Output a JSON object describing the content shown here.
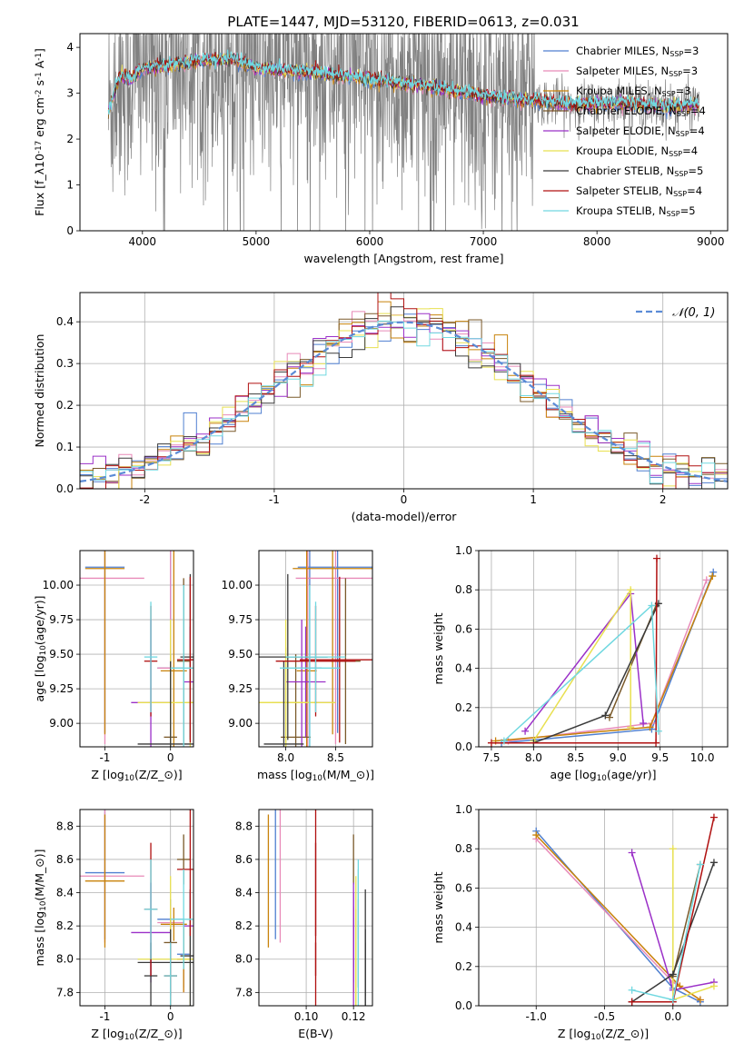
{
  "figure": {
    "title": "PLATE=1447, MJD=53120, FIBERID=0613, z=0.031"
  },
  "models": [
    {
      "label": "Chabrier MILES, N$_{SSP}$=3",
      "lib": "Chabrier MILES",
      "nssp": "3",
      "color": "#4f7fd0"
    },
    {
      "label": "Salpeter MILES, N$_{SSP}$=3",
      "lib": "Salpeter MILES",
      "nssp": "3",
      "color": "#e88ab8"
    },
    {
      "label": "Kroupa MILES, N$_{SSP}$=3",
      "lib": "Kroupa MILES",
      "nssp": "3",
      "color": "#c8820a"
    },
    {
      "label": "Chabrier ELODIE, N$_{SSP}$=4",
      "lib": "Chabrier ELODIE",
      "nssp": "4",
      "color": "#7a5a2a"
    },
    {
      "label": "Salpeter ELODIE, N$_{SSP}$=4",
      "lib": "Salpeter ELODIE",
      "nssp": "4",
      "color": "#9b30c8"
    },
    {
      "label": "Kroupa ELODIE, N$_{SSP}$=4",
      "lib": "Kroupa ELODIE",
      "nssp": "4",
      "color": "#e8e050"
    },
    {
      "label": "Chabrier STELIB, N$_{SSP}$=5",
      "lib": "Chabrier STELIB",
      "nssp": "5",
      "color": "#3a3a3a"
    },
    {
      "label": "Salpeter STELIB, N$_{SSP}$=4",
      "lib": "Salpeter STELIB",
      "nssp": "4",
      "color": "#b01010"
    },
    {
      "label": "Kroupa STELIB, N$_{SSP}$=5",
      "lib": "Kroupa STELIB",
      "nssp": "5",
      "color": "#70d8e0"
    }
  ],
  "chart_data": [
    {
      "id": "spectrum",
      "type": "line",
      "xlabel": "wavelength [Angstrom, rest frame]",
      "ylabel": "Flux [f$_\\lambda$10$^{-17}$ erg cm$^{-2}$ s$^{-1}$ A$^{-1}$]",
      "xlim": [
        3450,
        9150
      ],
      "ylim": [
        0,
        4.3
      ],
      "xticks": [
        4000,
        5000,
        6000,
        7000,
        8000,
        9000
      ],
      "yticks": [
        0,
        1,
        2,
        3,
        4
      ],
      "data_color": "#808080",
      "data_range": [
        3700,
        8900
      ],
      "model_range": [
        3700,
        7450
      ],
      "model_tail_range": [
        7450,
        8900
      ],
      "continuum": {
        "x": [
          3700,
          3800,
          3900,
          4000,
          4200,
          4500,
          4800,
          5000,
          5500,
          6000,
          6500,
          7000,
          7400,
          7800,
          8200,
          8600,
          8900
        ],
        "y": [
          2.6,
          3.4,
          3.3,
          3.55,
          3.6,
          3.7,
          3.75,
          3.55,
          3.45,
          3.3,
          3.15,
          2.95,
          2.85,
          2.75,
          2.8,
          2.7,
          2.75
        ]
      }
    },
    {
      "id": "residuals",
      "type": "line",
      "xlabel": "(data-model)/error",
      "ylabel": "Normed distribution",
      "xlim": [
        -2.5,
        2.5
      ],
      "ylim": [
        0,
        0.47
      ],
      "xticks": [
        -2,
        -1,
        0,
        1,
        2
      ],
      "yticks": [
        0.0,
        0.1,
        0.2,
        0.3,
        0.4
      ],
      "grid": true,
      "reference": {
        "label": "$\\mathcal{N}(0,1)$",
        "mean": 0,
        "sigma": 1,
        "color": "#5b8bd6"
      },
      "legend": "top-right"
    },
    {
      "id": "age_vs_Z",
      "type": "scatter",
      "xlabel": "Z [log$_{10}$(Z/Z$_\\odot$)]",
      "ylabel": "age  [log$_{10}$(age/yr)]",
      "xlim": [
        -1.38,
        0.35
      ],
      "ylim": [
        8.83,
        10.25
      ],
      "xticks": [
        -1,
        0
      ],
      "yticks": [
        9.0,
        9.25,
        9.5,
        9.75,
        10.0
      ],
      "grid": true
    },
    {
      "id": "age_vs_mass",
      "type": "scatter",
      "xlabel": "mass [log$_{10}$(M/M$_\\odot$)]",
      "xlim": [
        7.73,
        8.87
      ],
      "ylim": [
        8.83,
        10.25
      ],
      "xticks": [
        8.0,
        8.5
      ],
      "yticks": [
        9.0,
        9.25,
        9.5,
        9.75,
        10.0
      ],
      "grid": true
    },
    {
      "id": "mw_vs_age",
      "type": "line",
      "xlabel": "age  [log$_{10}$(age/yr)]",
      "ylabel": "mass weight",
      "xlim": [
        7.35,
        10.3
      ],
      "ylim": [
        0,
        1.0
      ],
      "xticks": [
        7.5,
        8.0,
        8.5,
        9.0,
        9.5,
        10.0
      ],
      "yticks": [
        0.0,
        0.2,
        0.4,
        0.6,
        0.8,
        1.0
      ],
      "grid": true
    },
    {
      "id": "mass_vs_Z",
      "type": "scatter",
      "xlabel": "Z [log$_{10}$(Z/Z$_\\odot$)]",
      "ylabel": "mass [log$_{10}$(M/M$_\\odot$)]",
      "xlim": [
        -1.38,
        0.35
      ],
      "ylim": [
        7.72,
        8.9
      ],
      "xticks": [
        -1,
        0
      ],
      "yticks": [
        7.8,
        8.0,
        8.2,
        8.4,
        8.6,
        8.8
      ],
      "grid": true
    },
    {
      "id": "mass_vs_ebv",
      "type": "scatter",
      "xlabel": "E(B-V)",
      "xlim": [
        0.08,
        0.128
      ],
      "ylim": [
        7.72,
        8.9
      ],
      "xticks": [
        0.1,
        0.12
      ],
      "yticks": [
        7.8,
        8.0,
        8.2,
        8.4,
        8.6,
        8.8
      ],
      "grid": true
    },
    {
      "id": "mw_vs_Z",
      "type": "line",
      "xlabel": "Z [log$_{10}$(Z/Z$_\\odot$)]",
      "ylabel": "mass weight",
      "xlim": [
        -1.42,
        0.4
      ],
      "ylim": [
        0,
        1.0
      ],
      "xticks": [
        -1.0,
        -0.5,
        0.0
      ],
      "yticks": [
        0.0,
        0.2,
        0.4,
        0.6,
        0.8,
        1.0
      ],
      "grid": true
    }
  ],
  "ssp": {
    "note_units": "per model: age/Z/mass/ebv/mass-weight of each SSP component; error bars shown as h/v extents",
    "components": [
      {
        "m": 0,
        "age": 10.13,
        "Z": -1.0,
        "mass": 8.52,
        "ebv": 0.087,
        "mw": 0.89,
        "dage": 0.02,
        "dZ": 0.3,
        "dmass": 0.4,
        "aerr": 1.2
      },
      {
        "m": 0,
        "age": 9.4,
        "Z": 0.0,
        "mass": 8.24,
        "ebv": 0.122,
        "mw": 0.09,
        "dage": 0.15,
        "dZ": 0.2,
        "dmass": 0.12,
        "aerr": 1.0
      },
      {
        "m": 0,
        "age": 7.62,
        "Z": 0.2,
        "mass": 8.03,
        "ebv": 0.122,
        "mw": 0.02,
        "dage": 0.2,
        "dZ": 0.1,
        "dmass": 0.2,
        "aerr": 0.2
      },
      {
        "m": 1,
        "age": 10.05,
        "Z": -1.0,
        "mass": 8.5,
        "ebv": 0.089,
        "mw": 0.85,
        "dage": 0.02,
        "dZ": 0.6,
        "dmass": 0.4,
        "aerr": 1.2
      },
      {
        "m": 1,
        "age": 9.4,
        "Z": 0.0,
        "mass": 8.22,
        "ebv": 0.12,
        "mw": 0.12,
        "dage": 0.2,
        "dZ": 0.2,
        "dmass": 0.1,
        "aerr": 1.0
      },
      {
        "m": 1,
        "age": 7.7,
        "Z": 0.2,
        "mass": 8.0,
        "ebv": 0.12,
        "mw": 0.03,
        "dage": 0.2,
        "dZ": 0.1,
        "dmass": 0.2,
        "aerr": 0.2
      },
      {
        "m": 2,
        "age": 10.12,
        "Z": -1.0,
        "mass": 8.47,
        "ebv": 0.084,
        "mw": 0.87,
        "dage": 0.02,
        "dZ": 0.3,
        "dmass": 0.4,
        "aerr": 1.2
      },
      {
        "m": 2,
        "age": 9.38,
        "Z": 0.05,
        "mass": 8.21,
        "ebv": 0.12,
        "mw": 0.1,
        "dage": 0.2,
        "dZ": 0.2,
        "dmass": 0.1,
        "aerr": 1.0
      },
      {
        "m": 2,
        "age": 7.55,
        "Z": 0.2,
        "mass": 8.0,
        "ebv": 0.12,
        "mw": 0.03,
        "dage": 0.2,
        "dZ": 0.1,
        "dmass": 0.2,
        "aerr": 0.2
      },
      {
        "m": 3,
        "age": 9.45,
        "Z": 0.2,
        "mass": 8.6,
        "ebv": 0.12,
        "mw": 0.72,
        "dage": 0.3,
        "dZ": 0.1,
        "dmass": 0.15,
        "aerr": 0.6
      },
      {
        "m": 3,
        "age": 8.9,
        "Z": 0.0,
        "mass": 8.1,
        "ebv": 0.12,
        "mw": 0.15,
        "dage": 0.3,
        "dZ": 0.1,
        "dmass": 0.15,
        "aerr": 0.6
      },
      {
        "m": 4,
        "age": 9.15,
        "Z": -0.3,
        "mass": 8.16,
        "ebv": 0.12,
        "mw": 0.78,
        "dage": 0.5,
        "dZ": 0.3,
        "dmass": 0.3,
        "aerr": 0.6
      },
      {
        "m": 4,
        "age": 9.3,
        "Z": 0.3,
        "mass": 8.2,
        "ebv": 0.12,
        "mw": 0.12,
        "dage": 0.3,
        "dZ": 0.1,
        "dmass": 0.2,
        "aerr": 0.4
      },
      {
        "m": 4,
        "age": 7.9,
        "Z": 0.0,
        "mass": 7.9,
        "ebv": 0.12,
        "mw": 0.08,
        "dage": 0.2,
        "dZ": 0.1,
        "dmass": 0.2,
        "aerr": 0.2
      },
      {
        "m": 5,
        "age": 9.15,
        "Z": 0.0,
        "mass": 8.0,
        "ebv": 0.121,
        "mw": 0.8,
        "dage": 0.3,
        "dZ": 0.5,
        "dmass": 0.5,
        "aerr": 0.6
      },
      {
        "m": 5,
        "age": 9.15,
        "Z": 0.3,
        "mass": 8.0,
        "ebv": 0.121,
        "mw": 0.1,
        "dage": 0.3,
        "dZ": 0.1,
        "dmass": 0.3,
        "aerr": 0.4
      },
      {
        "m": 5,
        "age": 8.0,
        "Z": 0.0,
        "mass": 7.9,
        "ebv": 0.121,
        "mw": 0.03,
        "dage": 0.2,
        "dZ": 0.1,
        "dmass": 0.2,
        "aerr": 0.2
      },
      {
        "m": 6,
        "age": 9.48,
        "Z": 0.3,
        "mass": 8.02,
        "ebv": 0.125,
        "mw": 0.73,
        "dage": 0.3,
        "dZ": 0.15,
        "dmass": 0.4,
        "aerr": 0.6
      },
      {
        "m": 6,
        "age": 8.85,
        "Z": 0.0,
        "mass": 7.98,
        "ebv": 0.125,
        "mw": 0.16,
        "dage": 0.3,
        "dZ": 0.5,
        "dmass": 0.2,
        "aerr": 0.6
      },
      {
        "m": 6,
        "age": 8.0,
        "Z": -0.3,
        "mass": 7.9,
        "ebv": 0.125,
        "mw": 0.02,
        "dage": 0.2,
        "dZ": 0.1,
        "dmass": 0.2,
        "aerr": 0.2
      },
      {
        "m": 7,
        "age": 9.46,
        "Z": 0.3,
        "mass": 8.54,
        "ebv": 0.104,
        "mw": 0.96,
        "dage": 0.1,
        "dZ": 0.2,
        "dmass": 0.4,
        "aerr": 0.6
      },
      {
        "m": 7,
        "age": 9.45,
        "Z": -0.3,
        "mass": 8.3,
        "ebv": 0.104,
        "mw": 0.02,
        "dage": 0.3,
        "dZ": 0.1,
        "dmass": 0.4,
        "aerr": 0.4
      },
      {
        "m": 7,
        "age": 7.5,
        "Z": 0.0,
        "mass": 7.9,
        "ebv": 0.104,
        "mw": 0.02,
        "dage": 0.2,
        "dZ": 0.1,
        "dmass": 0.2,
        "aerr": 0.2
      },
      {
        "m": 8,
        "age": 9.4,
        "Z": 0.2,
        "mass": 8.24,
        "ebv": 0.122,
        "mw": 0.72,
        "dage": 0.1,
        "dZ": 0.2,
        "dmass": 0.3,
        "aerr": 0.6
      },
      {
        "m": 8,
        "age": 9.48,
        "Z": -0.3,
        "mass": 8.3,
        "ebv": 0.122,
        "mw": 0.08,
        "dage": 0.3,
        "dZ": 0.1,
        "dmass": 0.3,
        "aerr": 0.4
      },
      {
        "m": 8,
        "age": 7.65,
        "Z": 0.0,
        "mass": 7.9,
        "ebv": 0.122,
        "mw": 0.03,
        "dage": 0.2,
        "dZ": 0.1,
        "dmass": 0.2,
        "aerr": 0.2
      }
    ]
  }
}
